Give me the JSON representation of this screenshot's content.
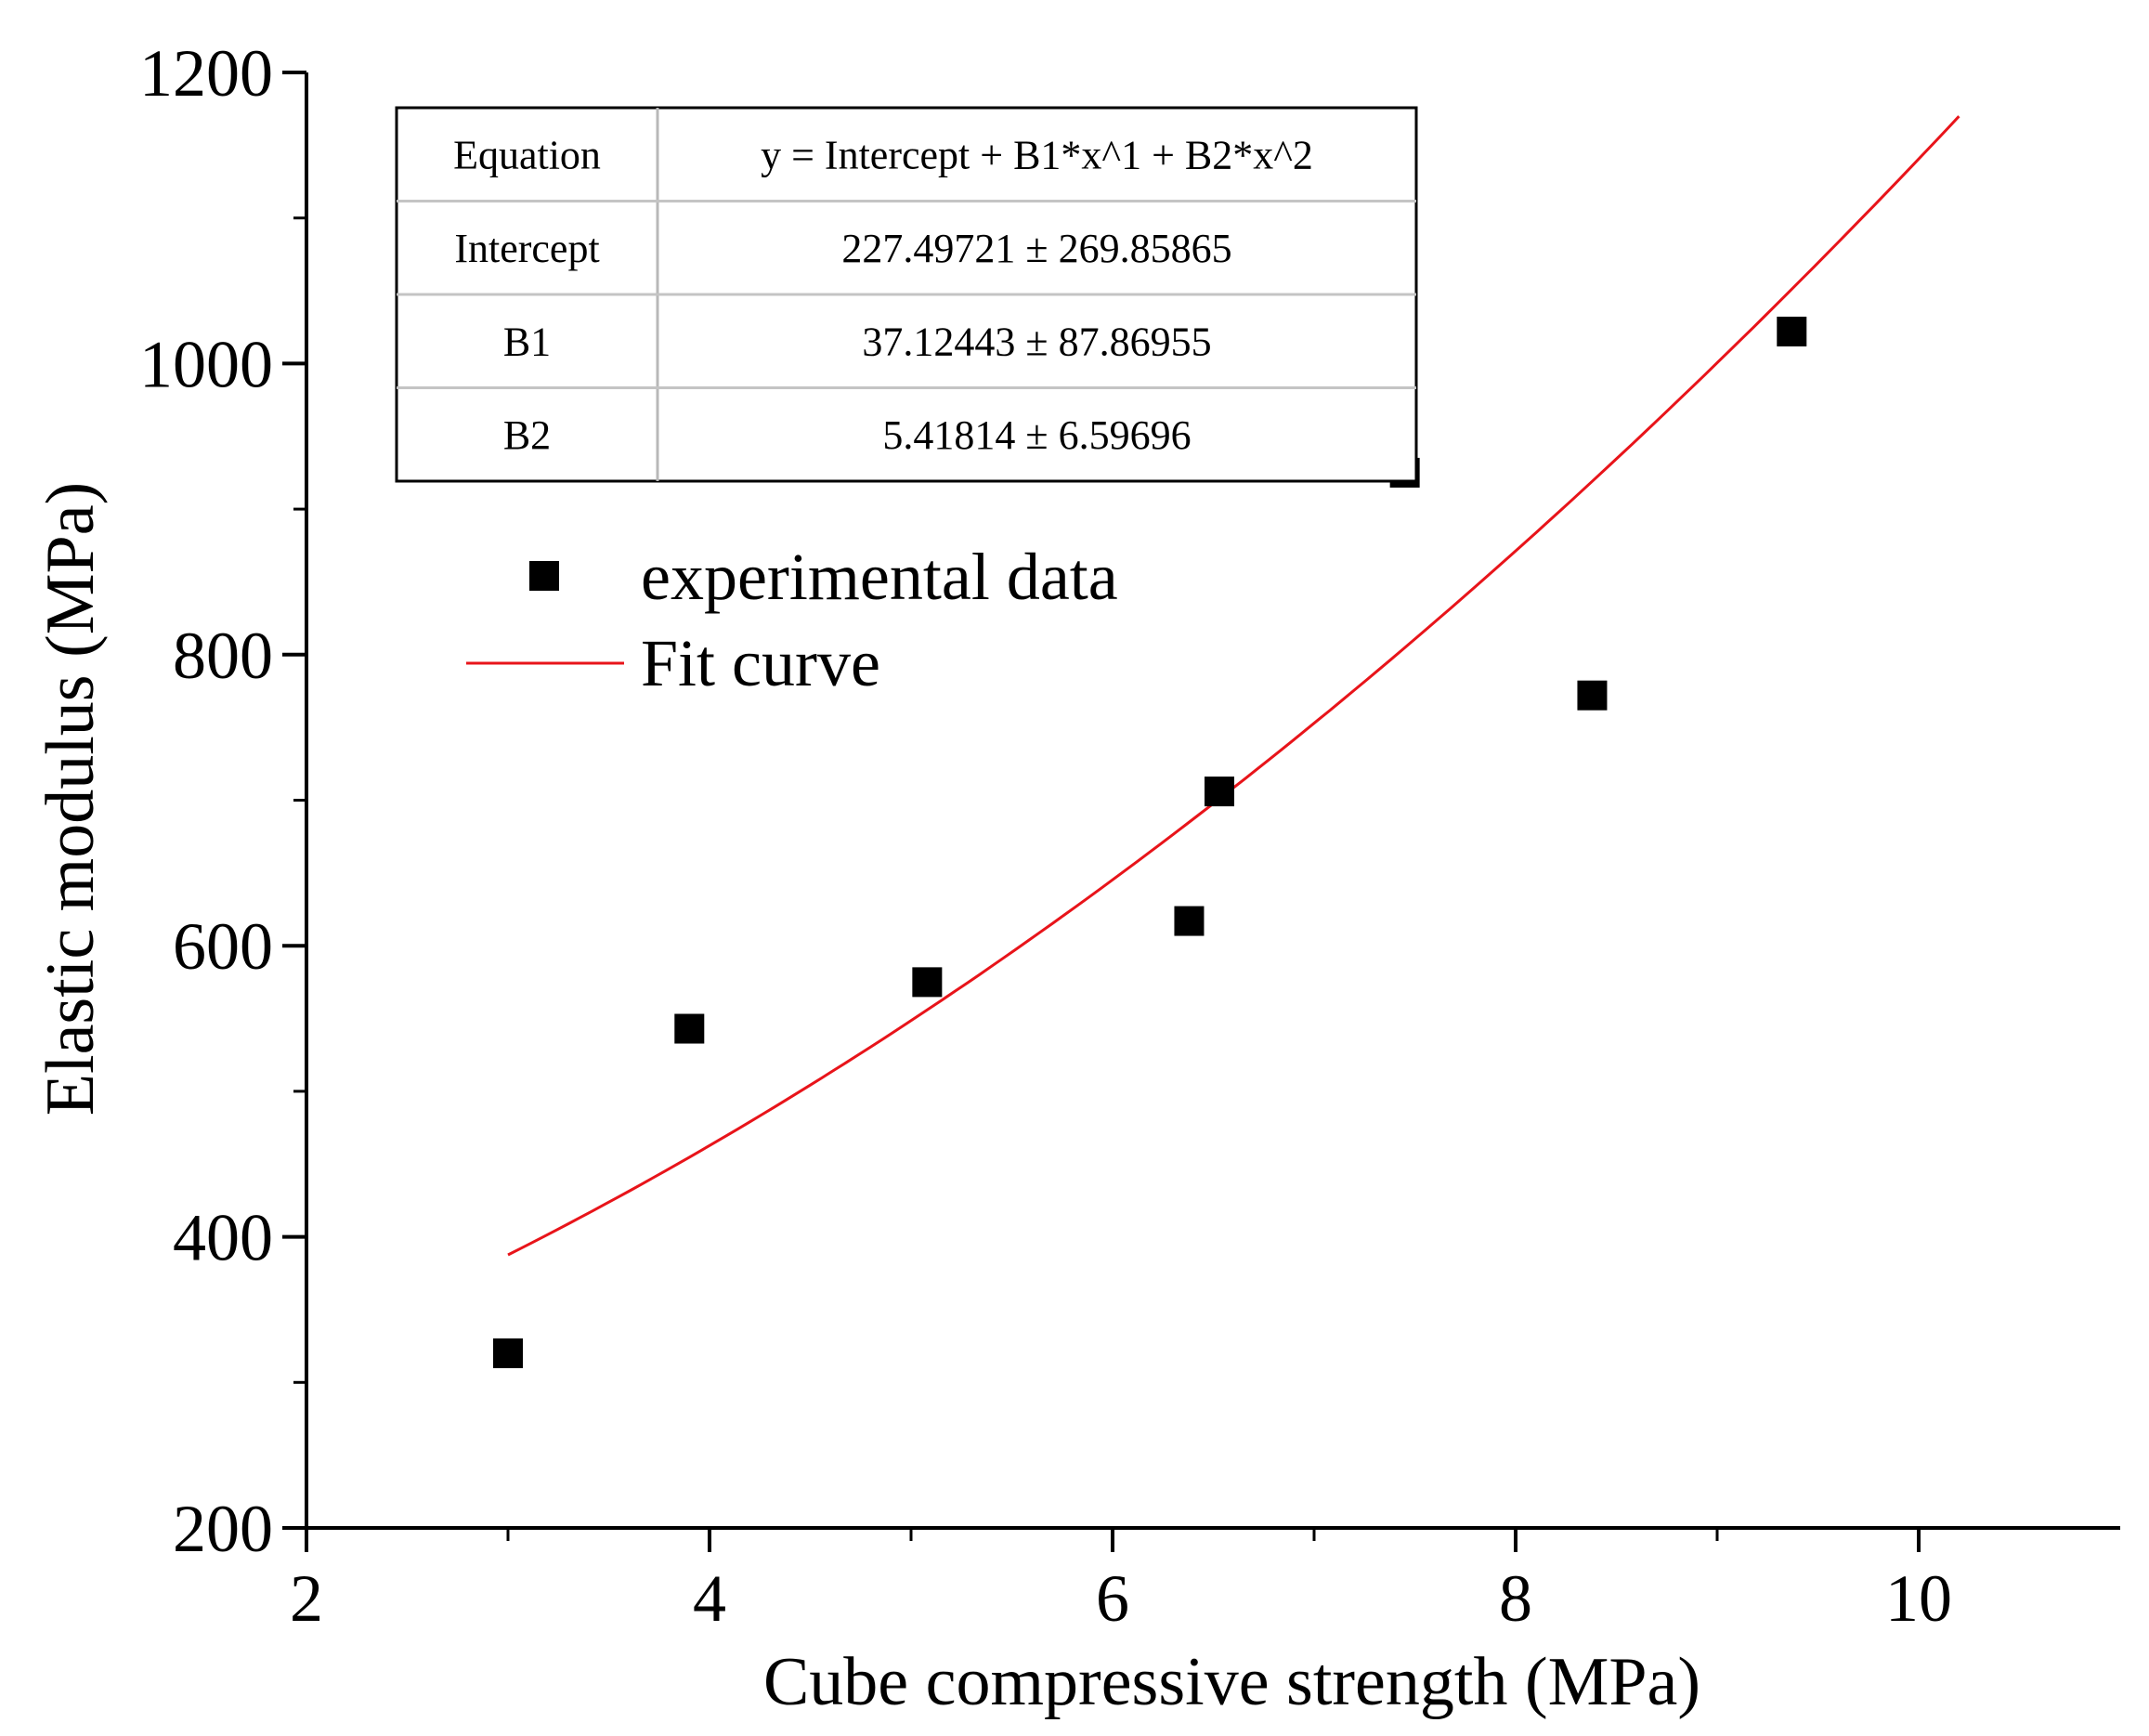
{
  "chart_data": {
    "type": "scatter",
    "xlabel": "Cube compressive strength (MPa)",
    "ylabel": "Elastic modulus (MPa)",
    "xlim": [
      2,
      11
    ],
    "ylim": [
      200,
      1200
    ],
    "x_ticks": [
      2,
      4,
      6,
      8,
      10
    ],
    "y_ticks": [
      200,
      400,
      600,
      800,
      1000,
      1200
    ],
    "x_tick_labels": [
      "2",
      "4",
      "6",
      "8",
      "10"
    ],
    "y_tick_labels": [
      "200",
      "400",
      "600",
      "800",
      "1000",
      "1200"
    ],
    "grid": false,
    "legend_position": "upper-left",
    "series": [
      {
        "name": "experimental data",
        "kind": "scatter",
        "marker": "square",
        "color": "#000000",
        "x": [
          3.0,
          3.9,
          5.08,
          6.38,
          6.53,
          7.45,
          8.38,
          9.37
        ],
        "y": [
          320,
          543,
          575,
          617,
          706,
          925,
          772,
          1022
        ]
      },
      {
        "name": "Fit curve",
        "kind": "line",
        "color": "#e8141a",
        "fit": {
          "intercept": 227.49721,
          "b1": 37.12443,
          "b2": 5.41814
        },
        "x_range": [
          3.0,
          10.2
        ]
      }
    ],
    "fit_table": {
      "rows": [
        [
          "Equation",
          "y = Intercept + B1*x^1 + B2*x^2"
        ],
        [
          "Intercept",
          "227.49721 ± 269.85865"
        ],
        [
          "B1",
          "37.12443 ± 87.86955"
        ],
        [
          "B2",
          "5.41814 ± 6.59696"
        ]
      ]
    }
  }
}
